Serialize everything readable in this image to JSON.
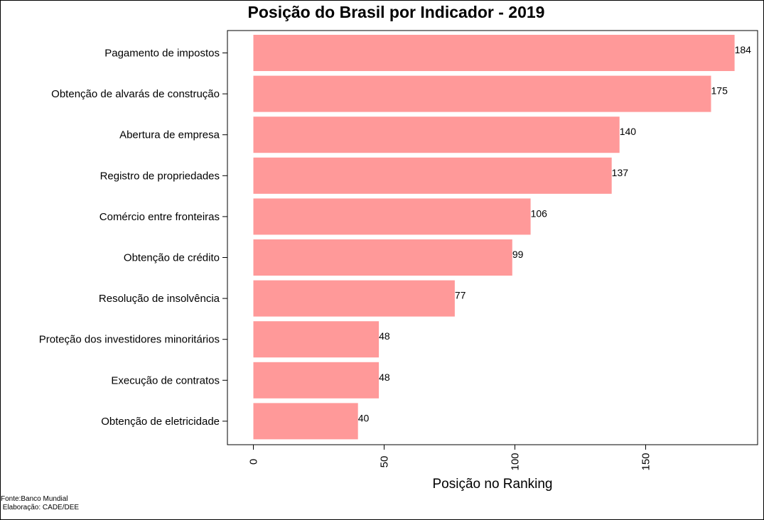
{
  "chart_data": {
    "type": "bar",
    "orientation": "horizontal",
    "title": "Posição do Brasil por Indicador - 2019",
    "xlabel": "Posição no Ranking",
    "ylabel": "",
    "xlim": [
      0,
      190
    ],
    "ticks": [
      0,
      50,
      100,
      150
    ],
    "bar_color": "#FF9999",
    "grid": false,
    "categories": [
      "Pagamento de impostos",
      "Obtenção de alvarás de construção",
      "Abertura de empresa",
      "Registro de propriedades",
      "Comércio entre fronteiras",
      "Obtenção de crédito",
      "Resolução de insolvência",
      "Proteção dos investidores minoritários",
      "Execução de contratos",
      "Obtenção de eletricidade"
    ],
    "values": [
      184,
      175,
      140,
      137,
      106,
      99,
      77,
      48,
      48,
      40
    ]
  },
  "caption": {
    "source": "Fonte:Banco Mundial",
    "author": " Elaboração: CADE/DEE"
  }
}
